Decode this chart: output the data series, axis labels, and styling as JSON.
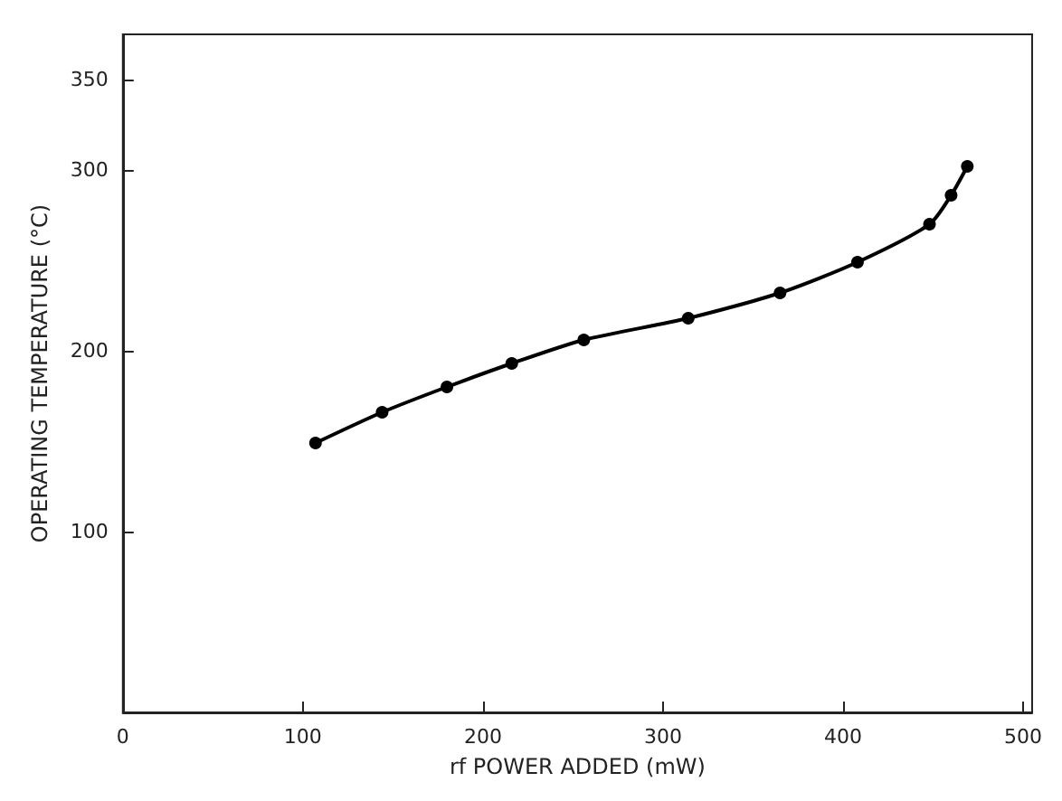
{
  "chart_data": {
    "type": "line",
    "xlabel": "rf POWER ADDED (mW)",
    "ylabel": "OPERATING TEMPERATURE (°C)",
    "x": [
      107,
      144,
      180,
      216,
      256,
      314,
      365,
      408,
      448,
      460,
      469
    ],
    "series": [
      {
        "color": "#000000",
        "values": [
          149,
          166,
          180,
          193,
          206,
          218,
          232,
          249,
          270,
          286,
          302
        ]
      }
    ],
    "xlim": [
      0,
      505
    ],
    "xticks": [
      0,
      100,
      200,
      300,
      400,
      500
    ],
    "ylim": [
      0,
      375
    ],
    "yticks": [
      100,
      200,
      300,
      350
    ],
    "marker": "circle",
    "line_style": "solid",
    "grid": false
  }
}
